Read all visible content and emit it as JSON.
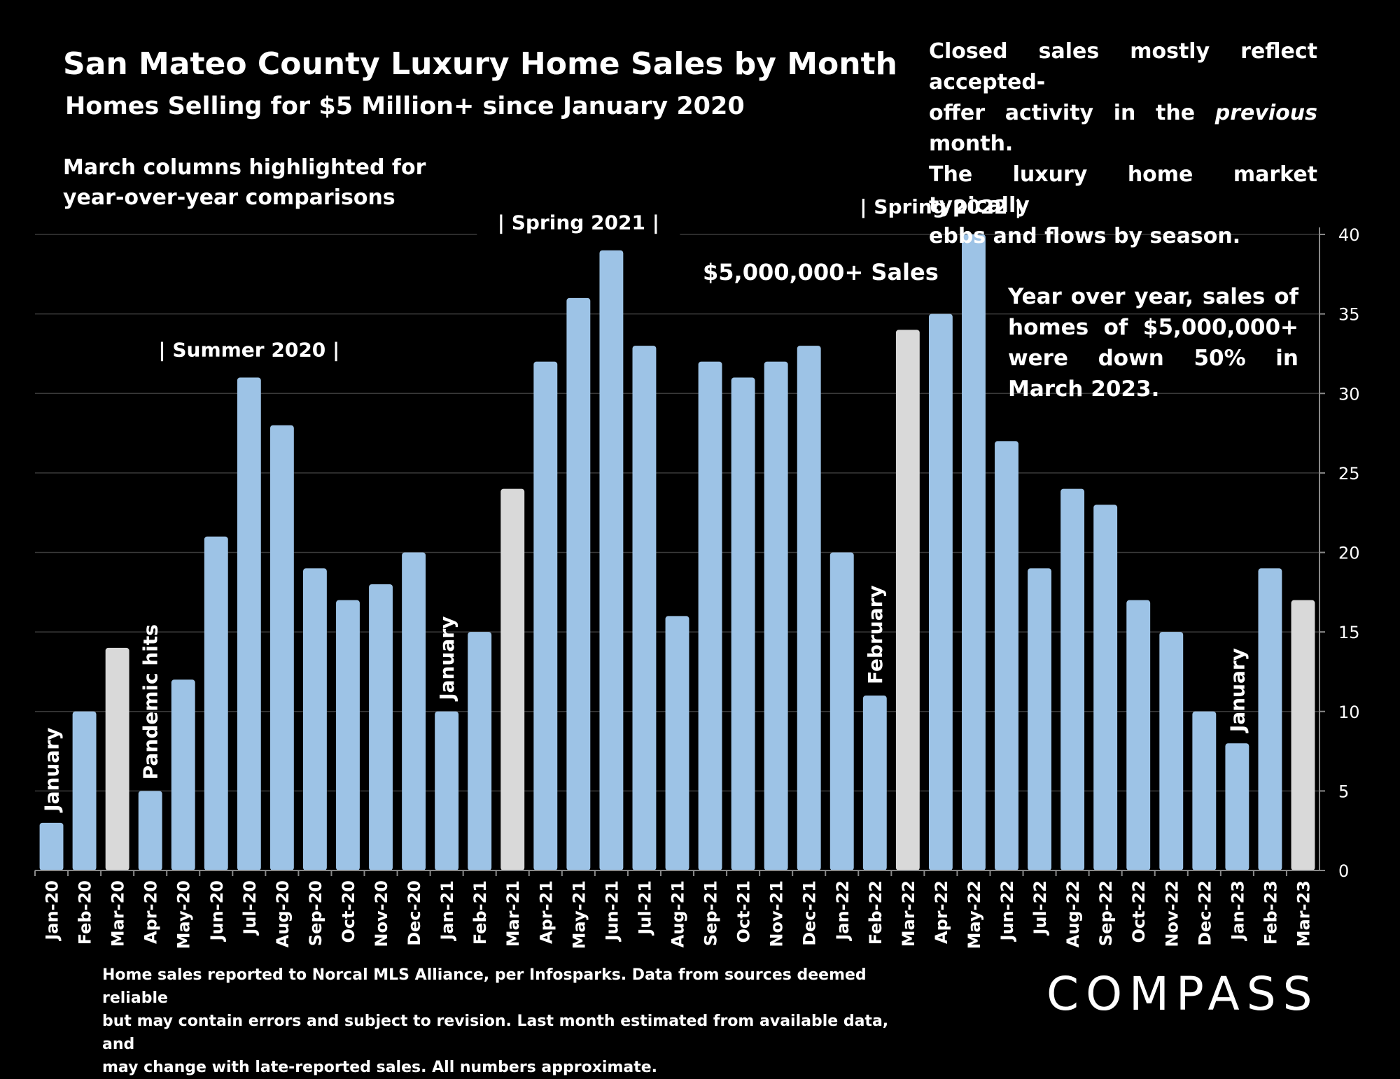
{
  "title": "San Mateo County Luxury Home Sales by Month",
  "subtitle": "Homes Selling for $5 Million+ since January 2020",
  "notes": {
    "march_highlight": [
      "March columns highlighted for",
      "year-over-year comparisons"
    ],
    "closed_sales": [
      "Closed sales mostly reflect accepted-",
      "offer activity in the ",
      "previous",
      " month.",
      "The luxury home market typically",
      "ebbs and flows by season."
    ],
    "yoy": "Year over year, sales of homes of $5,000,000+ were down  50% in March 2023.",
    "series_label": "$5,000,000+ Sales"
  },
  "footnote": [
    "Home sales reported to Norcal MLS Alliance, per Infosparks. Data from sources deemed reliable",
    "but may contain errors and subject to revision.  Last month estimated from available data, and",
    "may change with late-reported sales. All numbers approximate."
  ],
  "logo": "COMPASS",
  "colors": {
    "background": "#000000",
    "bar": "#9DC3E6",
    "highlight_bar": "#D9D9D9",
    "text": "#FFFFFF",
    "grid": "#3A3A3A"
  },
  "chart_data": {
    "type": "bar",
    "categories": [
      "Jan-20",
      "Feb-20",
      "Mar-20",
      "Apr-20",
      "May-20",
      "Jun-20",
      "Jul-20",
      "Aug-20",
      "Sep-20",
      "Oct-20",
      "Nov-20",
      "Dec-20",
      "Jan-21",
      "Feb-21",
      "Mar-21",
      "Apr-21",
      "May-21",
      "Jun-21",
      "Jul-21",
      "Aug-21",
      "Sep-21",
      "Oct-21",
      "Nov-21",
      "Dec-21",
      "Jan-22",
      "Feb-22",
      "Mar-22",
      "Apr-22",
      "May-22",
      "Jun-22",
      "Jul-22",
      "Aug-22",
      "Sep-22",
      "Oct-22",
      "Nov-22",
      "Dec-22",
      "Jan-23",
      "Feb-23",
      "Mar-23"
    ],
    "values": [
      3,
      10,
      14,
      5,
      12,
      21,
      31,
      28,
      19,
      17,
      18,
      20,
      10,
      15,
      24,
      32,
      36,
      39,
      33,
      16,
      32,
      31,
      32,
      33,
      20,
      11,
      34,
      35,
      40,
      27,
      19,
      24,
      23,
      17,
      15,
      10,
      8,
      19,
      17
    ],
    "highlighted": [
      "Mar-20",
      "Mar-21",
      "Mar-22",
      "Mar-23"
    ],
    "ylim": [
      0,
      40
    ],
    "yticks": [
      0,
      5,
      10,
      15,
      20,
      25,
      30,
      35,
      40
    ],
    "y_axis_side": "right",
    "grid": true,
    "bar_annotations": [
      {
        "category": "Jan-20",
        "text": "January"
      },
      {
        "category": "Apr-20",
        "text": "Pandemic hits"
      },
      {
        "category": "Jan-21",
        "text": "January"
      },
      {
        "category": "Feb-22",
        "text": "February"
      },
      {
        "category": "Jan-23",
        "text": "January"
      }
    ],
    "period_labels": [
      {
        "text": "|  Summer 2020  |",
        "from": "Jun-20",
        "to": "Aug-20"
      },
      {
        "text": "|  Spring 2021  |",
        "from": "Apr-21",
        "to": "Jun-21"
      },
      {
        "text": "|  Spring 2022  |",
        "from": "Mar-22",
        "to": "May-22"
      }
    ]
  }
}
